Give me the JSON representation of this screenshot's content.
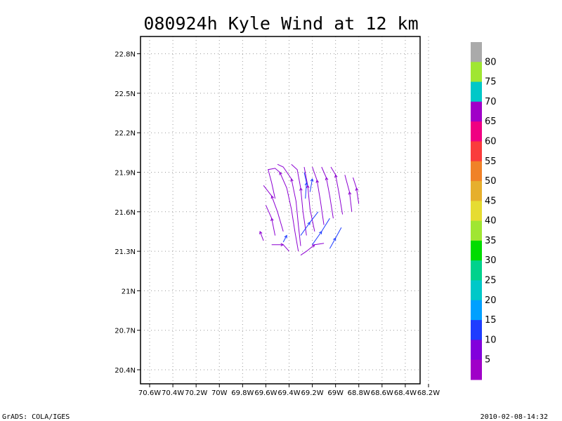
{
  "chart_data": {
    "type": "vector_streamline",
    "title": "080924h Kyle Wind at 12 km",
    "x_ticks": [
      "70.6W",
      "70.4W",
      "70.2W",
      "70W",
      "69.8W",
      "69.6W",
      "69.4W",
      "69.2W",
      "69W",
      "68.8W",
      "68.6W",
      "68.4W",
      "68.2W"
    ],
    "y_ticks": [
      "22.8N",
      "22.5N",
      "22.2N",
      "21.9N",
      "21.6N",
      "21.3N",
      "21N",
      "20.7N",
      "20.4N"
    ],
    "xlim": [
      -70.6,
      -68.2
    ],
    "ylim": [
      20.35,
      22.85
    ],
    "grid": true,
    "colorbar": {
      "labels": [
        "5",
        "10",
        "15",
        "20",
        "25",
        "30",
        "35",
        "40",
        "45",
        "50",
        "55",
        "60",
        "65",
        "70",
        "75",
        "80"
      ],
      "colors": [
        "#a000c8",
        "#8200dc",
        "#1e3cff",
        "#00a0ff",
        "#00c8c8",
        "#00d28c",
        "#00dc00",
        "#a0e632",
        "#e6dc32",
        "#e6af2d",
        "#f08228",
        "#fa3c3c",
        "#f00082",
        "#a000c8",
        "#00c8c8",
        "#a0e632",
        "#aaaaaa"
      ]
    },
    "streamlines": [
      {
        "color": "#8c00d2",
        "points": [
          [
            -69.55,
            21.35
          ],
          [
            -69.45,
            21.35
          ],
          [
            -69.4,
            21.3
          ]
        ]
      },
      {
        "color": "#8c00d2",
        "points": [
          [
            -69.3,
            21.27
          ],
          [
            -69.25,
            21.3
          ],
          [
            -69.18,
            21.35
          ],
          [
            -69.1,
            21.36
          ]
        ]
      },
      {
        "color": "#8c00d2",
        "points": [
          [
            -69.32,
            21.3
          ],
          [
            -69.35,
            21.45
          ],
          [
            -69.38,
            21.62
          ],
          [
            -69.42,
            21.78
          ],
          [
            -69.48,
            21.9
          ],
          [
            -69.52,
            21.93
          ],
          [
            -69.58,
            21.92
          ],
          [
            -69.55,
            21.82
          ],
          [
            -69.52,
            21.7
          ]
        ]
      },
      {
        "color": "#8c00d2",
        "points": [
          [
            -69.3,
            21.34
          ],
          [
            -69.32,
            21.5
          ],
          [
            -69.34,
            21.68
          ],
          [
            -69.38,
            21.85
          ],
          [
            -69.45,
            21.94
          ],
          [
            -69.5,
            21.96
          ]
        ]
      },
      {
        "color": "#8c00d2",
        "points": [
          [
            -69.25,
            21.42
          ],
          [
            -69.28,
            21.6
          ],
          [
            -69.3,
            21.78
          ],
          [
            -69.33,
            21.92
          ],
          [
            -69.38,
            21.96
          ]
        ]
      },
      {
        "color": "#8c00d2",
        "points": [
          [
            -69.18,
            21.45
          ],
          [
            -69.22,
            21.62
          ],
          [
            -69.24,
            21.8
          ],
          [
            -69.27,
            21.94
          ]
        ]
      },
      {
        "color": "#8c00d2",
        "points": [
          [
            -69.1,
            21.5
          ],
          [
            -69.13,
            21.68
          ],
          [
            -69.16,
            21.84
          ],
          [
            -69.2,
            21.94
          ]
        ]
      },
      {
        "color": "#8c00d2",
        "points": [
          [
            -69.02,
            21.55
          ],
          [
            -69.05,
            21.72
          ],
          [
            -69.08,
            21.86
          ],
          [
            -69.12,
            21.94
          ]
        ]
      },
      {
        "color": "#8c00d2",
        "points": [
          [
            -68.94,
            21.58
          ],
          [
            -68.97,
            21.74
          ],
          [
            -69.0,
            21.88
          ],
          [
            -69.04,
            21.94
          ]
        ]
      },
      {
        "color": "#8c00d2",
        "points": [
          [
            -68.86,
            21.6
          ],
          [
            -68.88,
            21.75
          ],
          [
            -68.92,
            21.88
          ]
        ]
      },
      {
        "color": "#8c00d2",
        "points": [
          [
            -68.8,
            21.66
          ],
          [
            -68.82,
            21.78
          ],
          [
            -68.85,
            21.86
          ]
        ]
      },
      {
        "color": "#8c00d2",
        "points": [
          [
            -69.45,
            21.45
          ],
          [
            -69.5,
            21.6
          ],
          [
            -69.55,
            21.72
          ],
          [
            -69.62,
            21.8
          ]
        ]
      },
      {
        "color": "#8c00d2",
        "points": [
          [
            -69.52,
            21.42
          ],
          [
            -69.55,
            21.55
          ],
          [
            -69.6,
            21.65
          ]
        ]
      },
      {
        "color": "#8c00d2",
        "points": [
          [
            -69.62,
            21.38
          ],
          [
            -69.65,
            21.45
          ]
        ]
      },
      {
        "color": "#1e3cff",
        "points": [
          [
            -69.05,
            21.32
          ],
          [
            -69.0,
            21.4
          ],
          [
            -68.95,
            21.48
          ]
        ]
      },
      {
        "color": "#1e3cff",
        "points": [
          [
            -69.2,
            21.35
          ],
          [
            -69.12,
            21.45
          ],
          [
            -69.05,
            21.55
          ]
        ]
      },
      {
        "color": "#1e3cff",
        "points": [
          [
            -69.3,
            21.42
          ],
          [
            -69.22,
            21.52
          ],
          [
            -69.15,
            21.6
          ]
        ]
      },
      {
        "color": "#1e3cff",
        "points": [
          [
            -69.26,
            21.7
          ],
          [
            -69.25,
            21.82
          ],
          [
            -69.27,
            21.9
          ]
        ]
      },
      {
        "color": "#1e3cff",
        "points": [
          [
            -69.22,
            21.75
          ],
          [
            -69.2,
            21.85
          ]
        ]
      },
      {
        "color": "#1e3cff",
        "points": [
          [
            -69.45,
            21.37
          ],
          [
            -69.42,
            21.42
          ]
        ]
      }
    ]
  },
  "footer": {
    "left": "GrADS: COLA/IGES",
    "right": "2010-02-08-14:32"
  }
}
